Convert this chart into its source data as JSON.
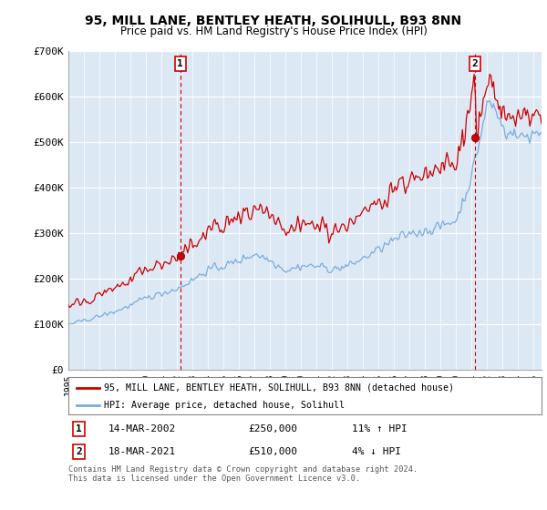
{
  "title": "95, MILL LANE, BENTLEY HEATH, SOLIHULL, B93 8NN",
  "subtitle": "Price paid vs. HM Land Registry's House Price Index (HPI)",
  "title_fontsize": 10,
  "subtitle_fontsize": 8.5,
  "background_color": "#ffffff",
  "plot_bg_color": "#dde8f5",
  "grid_color": "#ffffff",
  "ylim": [
    0,
    700000
  ],
  "yticks": [
    0,
    100000,
    200000,
    300000,
    400000,
    500000,
    600000,
    700000
  ],
  "ytick_labels": [
    "£0",
    "£100K",
    "£200K",
    "£300K",
    "£400K",
    "£500K",
    "£600K",
    "£700K"
  ],
  "sale1_x": 2002.21,
  "sale1_price": 250000,
  "sale2_x": 2021.21,
  "sale2_price": 510000,
  "vline_color": "#cc0000",
  "property_line_color": "#cc0000",
  "hpi_line_color": "#7aadda",
  "legend_property": "95, MILL LANE, BENTLEY HEATH, SOLIHULL, B93 8NN (detached house)",
  "legend_hpi": "HPI: Average price, detached house, Solihull",
  "note1_label": "1",
  "note1_date": "14-MAR-2002",
  "note1_price": "£250,000",
  "note1_hpi": "11% ↑ HPI",
  "note2_label": "2",
  "note2_date": "18-MAR-2021",
  "note2_price": "£510,000",
  "note2_hpi": "4% ↓ HPI",
  "footnote": "Contains HM Land Registry data © Crown copyright and database right 2024.\nThis data is licensed under the Open Government Licence v3.0.",
  "xstart": 1995.0,
  "xend": 2025.5
}
